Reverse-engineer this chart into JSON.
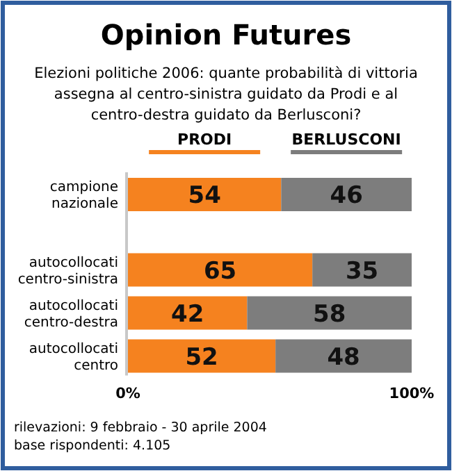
{
  "chart_data": {
    "type": "bar",
    "orientation": "horizontal",
    "stacked": true,
    "title": "Opinion Futures",
    "subtitle": "Elezioni politiche 2006: quante probabilità di vittoria assegna al centro-sinistra guidato da Prodi e al centro-destra guidato da Berlusconi?",
    "categories": [
      "campione nazionale",
      "autocollocati centro-sinistra",
      "autocollocati centro-destra",
      "autocollocati centro"
    ],
    "series": [
      {
        "name": "PRODI",
        "color": "#f5821f",
        "values": [
          54,
          65,
          42,
          52
        ]
      },
      {
        "name": "BERLUSCONI",
        "color": "#7d7d7d",
        "values": [
          46,
          35,
          58,
          48
        ]
      }
    ],
    "xlim": [
      0,
      100
    ],
    "xticks": [
      {
        "value": 0,
        "label": "0%"
      },
      {
        "value": 100,
        "label": "100%"
      }
    ],
    "data_labels": true,
    "legend": "top",
    "grid": false,
    "annotations": [
      "rilevazioni: 9 febbraio - 30 aprile 2004",
      "base rispondenti: 4.105"
    ]
  }
}
